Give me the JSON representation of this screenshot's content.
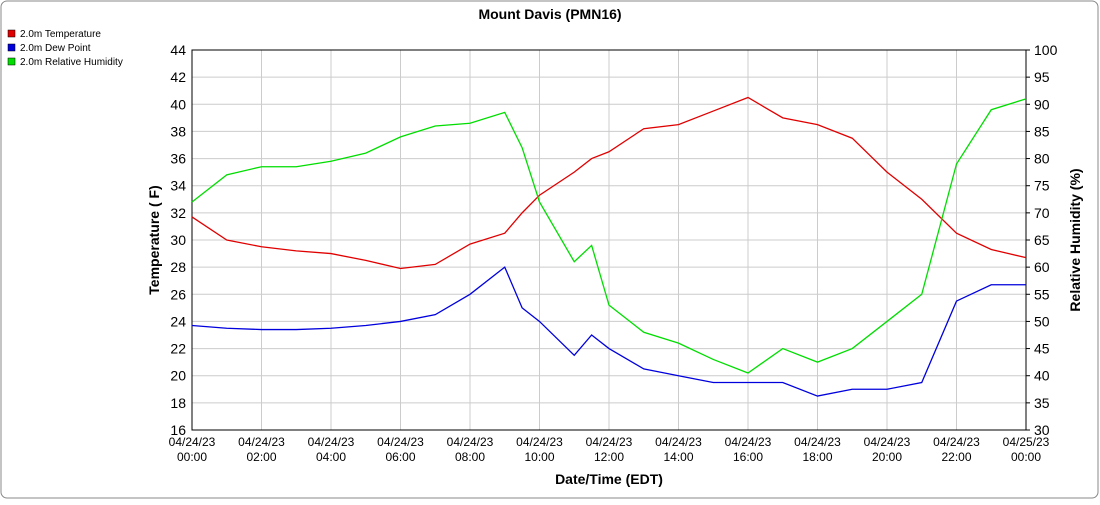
{
  "chart_data": {
    "type": "line",
    "title": "Mount Davis (PMN16)",
    "x_label": "Date/Time (EDT)",
    "y_label": "Temperature ( F)",
    "y2_label": "Relative Humidity (%)",
    "x": [
      "2023-04-24T00:00",
      "2023-04-24T01:00",
      "2023-04-24T02:00",
      "2023-04-24T03:00",
      "2023-04-24T04:00",
      "2023-04-24T05:00",
      "2023-04-24T06:00",
      "2023-04-24T07:00",
      "2023-04-24T08:00",
      "2023-04-24T09:00",
      "2023-04-24T09:30",
      "2023-04-24T10:00",
      "2023-04-24T11:00",
      "2023-04-24T11:30",
      "2023-04-24T12:00",
      "2023-04-24T13:00",
      "2023-04-24T14:00",
      "2023-04-24T15:00",
      "2023-04-24T16:00",
      "2023-04-24T17:00",
      "2023-04-24T18:00",
      "2023-04-24T19:00",
      "2023-04-24T20:00",
      "2023-04-24T21:00",
      "2023-04-24T22:00",
      "2023-04-24T23:00",
      "2023-04-25T00:00"
    ],
    "series": [
      {
        "name": "2.0m Temperature",
        "color": "#e00000",
        "values": [
          31.7,
          30,
          29.5,
          29.2,
          29,
          28.5,
          27.9,
          28.2,
          29.7,
          30.5,
          32,
          33.3,
          35,
          36,
          36.5,
          38.2,
          38.5,
          39.5,
          40.5,
          39,
          38.5,
          37.5,
          35,
          33,
          30.5,
          29.3,
          28.7
        ]
      },
      {
        "name": "2.0m Dew Point",
        "color": "#0000dd",
        "values": [
          23.7,
          23.5,
          23.4,
          23.4,
          23.5,
          23.7,
          24,
          24.5,
          26,
          28,
          25,
          24,
          21.5,
          23,
          22,
          20.5,
          20,
          19.5,
          19.5,
          19.5,
          18.5,
          19,
          19,
          19.5,
          25.5,
          26.7,
          26.7
        ]
      },
      {
        "name": "2.0m Relative Humidity",
        "color": "#00dd00",
        "axis": "y2",
        "values": [
          72,
          77,
          78.5,
          78.5,
          79.5,
          81,
          84,
          86,
          86.5,
          88.5,
          82,
          72,
          61,
          64,
          53,
          48,
          46,
          43,
          40.5,
          45,
          42.5,
          45,
          50,
          55,
          79,
          89,
          91
        ]
      }
    ],
    "xlim": [
      "2023-04-24T00:00",
      "2023-04-25T00:00"
    ],
    "xticks": [
      {
        "value": "2023-04-24T00:00",
        "label": "04/24/23 00:00"
      },
      {
        "value": "2023-04-24T02:00",
        "label": "04/24/23 02:00"
      },
      {
        "value": "2023-04-24T04:00",
        "label": "04/24/23 04:00"
      },
      {
        "value": "2023-04-24T06:00",
        "label": "04/24/23 06:00"
      },
      {
        "value": "2023-04-24T08:00",
        "label": "04/24/23 08:00"
      },
      {
        "value": "2023-04-24T10:00",
        "label": "04/24/23 10:00"
      },
      {
        "value": "2023-04-24T12:00",
        "label": "04/24/23 12:00"
      },
      {
        "value": "2023-04-24T14:00",
        "label": "04/24/23 14:00"
      },
      {
        "value": "2023-04-24T16:00",
        "label": "04/24/23 16:00"
      },
      {
        "value": "2023-04-24T18:00",
        "label": "04/24/23 18:00"
      },
      {
        "value": "2023-04-24T20:00",
        "label": "04/24/23 20:00"
      },
      {
        "value": "2023-04-24T22:00",
        "label": "04/24/23 22:00"
      },
      {
        "value": "2023-04-25T00:00",
        "label": "04/25/23 00:00"
      }
    ],
    "ylim": [
      16,
      44
    ],
    "yticks": [
      16,
      18,
      20,
      22,
      24,
      26,
      28,
      30,
      32,
      34,
      36,
      38,
      40,
      42,
      44
    ],
    "y2lim": [
      30,
      100
    ],
    "y2ticks": [
      30,
      35,
      40,
      45,
      50,
      55,
      60,
      65,
      70,
      75,
      80,
      85,
      90,
      95,
      100
    ],
    "grid": true,
    "legend": "top-left"
  }
}
